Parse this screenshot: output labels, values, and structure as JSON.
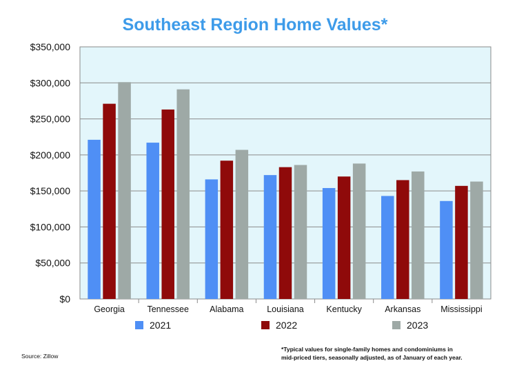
{
  "chart_data": {
    "type": "bar",
    "title": "Southeast Region Home Values*",
    "categories": [
      "Georgia",
      "Tennessee",
      "Alabama",
      "Louisiana",
      "Kentucky",
      "Arkansas",
      "Mississippi"
    ],
    "series": [
      {
        "name": "2021",
        "color": "#4f8ff5",
        "values": [
          221000,
          217000,
          166000,
          172000,
          154000,
          143000,
          136000
        ]
      },
      {
        "name": "2022",
        "color": "#8f0a0a",
        "values": [
          271000,
          263000,
          192000,
          183000,
          170000,
          165000,
          157000
        ]
      },
      {
        "name": "2023",
        "color": "#9ea9a6",
        "values": [
          301000,
          291000,
          207000,
          186000,
          188000,
          177000,
          163000
        ]
      }
    ],
    "ylim": [
      0,
      350000
    ],
    "yticks": [
      0,
      50000,
      100000,
      150000,
      200000,
      250000,
      300000,
      350000
    ],
    "ytick_labels": [
      "$0",
      "$50,000",
      "$100,000",
      "$150,000",
      "$200,000",
      "$250,000",
      "$300,000",
      "$350,000"
    ],
    "grid": true,
    "legend_position": "bottom",
    "plot_background": "#e3f6fb",
    "title_color": "#3d9be9",
    "source": "Source: Zillow",
    "footnote": [
      "*Typical values for single-family homes and condominiums in",
      "mid-priced tiers, seasonally adjusted, as of January of each year."
    ]
  }
}
